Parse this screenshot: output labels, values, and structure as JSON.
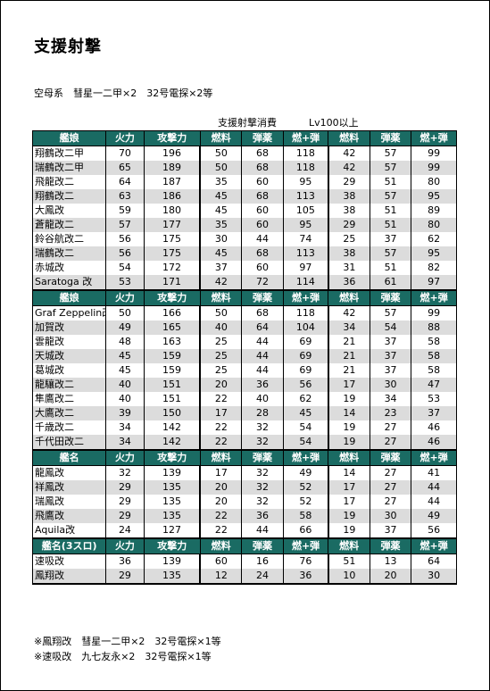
{
  "title": "支援射撃",
  "subtitle": "空母系　彗星一二甲×2　32号電探×2等",
  "labels": {
    "consumption": "支援射撃消費",
    "lv": "Lv100以上"
  },
  "sections": [
    {
      "header": [
        "艦娘",
        "火力",
        "攻撃力",
        "燃料",
        "弾薬",
        "燃+弾",
        "燃料",
        "弾薬",
        "燃+弾"
      ],
      "rows": [
        [
          "翔鶴改二甲",
          "70",
          "196",
          "50",
          "68",
          "118",
          "42",
          "57",
          "99"
        ],
        [
          "瑞鶴改二甲",
          "65",
          "189",
          "50",
          "68",
          "118",
          "42",
          "57",
          "99"
        ],
        [
          "飛龍改二",
          "64",
          "187",
          "35",
          "60",
          "95",
          "29",
          "51",
          "80"
        ],
        [
          "翔鶴改二",
          "63",
          "186",
          "45",
          "68",
          "113",
          "38",
          "57",
          "95"
        ],
        [
          "大鳳改",
          "59",
          "180",
          "45",
          "60",
          "105",
          "38",
          "51",
          "89"
        ],
        [
          "蒼龍改二",
          "57",
          "177",
          "35",
          "60",
          "95",
          "29",
          "51",
          "80"
        ],
        [
          "鈴谷航改二",
          "56",
          "175",
          "30",
          "44",
          "74",
          "25",
          "37",
          "62"
        ],
        [
          "瑞鶴改二",
          "56",
          "175",
          "45",
          "68",
          "113",
          "38",
          "57",
          "95"
        ],
        [
          "赤城改",
          "54",
          "172",
          "37",
          "60",
          "97",
          "31",
          "51",
          "82"
        ],
        [
          "Saratoga 改",
          "53",
          "171",
          "42",
          "72",
          "114",
          "36",
          "61",
          "97"
        ]
      ]
    },
    {
      "header": [
        "艦娘",
        "火力",
        "攻撃力",
        "燃料",
        "弾薬",
        "燃+弾",
        "燃料",
        "弾薬",
        "燃+弾"
      ],
      "rows": [
        [
          "Graf Zeppelin改",
          "50",
          "166",
          "50",
          "68",
          "118",
          "42",
          "57",
          "99"
        ],
        [
          "加賀改",
          "49",
          "165",
          "40",
          "64",
          "104",
          "34",
          "54",
          "88"
        ],
        [
          "雲龍改",
          "48",
          "163",
          "25",
          "44",
          "69",
          "21",
          "37",
          "58"
        ],
        [
          "天城改",
          "45",
          "159",
          "25",
          "44",
          "69",
          "21",
          "37",
          "58"
        ],
        [
          "葛城改",
          "45",
          "159",
          "25",
          "44",
          "69",
          "21",
          "37",
          "58"
        ],
        [
          "龍驤改二",
          "40",
          "151",
          "20",
          "36",
          "56",
          "17",
          "30",
          "47"
        ],
        [
          "隼鷹改二",
          "40",
          "151",
          "22",
          "40",
          "62",
          "19",
          "34",
          "53"
        ],
        [
          "大鷹改二",
          "39",
          "150",
          "17",
          "28",
          "45",
          "14",
          "23",
          "37"
        ],
        [
          "千歳改二",
          "34",
          "142",
          "22",
          "32",
          "54",
          "19",
          "27",
          "46"
        ],
        [
          "千代田改二",
          "34",
          "142",
          "22",
          "32",
          "54",
          "19",
          "27",
          "46"
        ]
      ]
    },
    {
      "header": [
        "艦名",
        "火力",
        "攻撃力",
        "燃料",
        "弾薬",
        "燃+弾",
        "燃料",
        "弾薬",
        "燃+弾"
      ],
      "rows": [
        [
          "龍鳳改",
          "32",
          "139",
          "17",
          "32",
          "49",
          "14",
          "27",
          "41"
        ],
        [
          "祥鳳改",
          "29",
          "135",
          "20",
          "32",
          "52",
          "17",
          "27",
          "44"
        ],
        [
          "瑞鳳改",
          "29",
          "135",
          "20",
          "32",
          "52",
          "17",
          "27",
          "44"
        ],
        [
          "飛鷹改",
          "29",
          "135",
          "22",
          "36",
          "58",
          "19",
          "30",
          "49"
        ],
        [
          "Aquila改",
          "24",
          "127",
          "22",
          "44",
          "66",
          "19",
          "37",
          "56"
        ]
      ]
    },
    {
      "header": [
        "艦名(3スロ)",
        "火力",
        "攻撃力",
        "燃料",
        "弾薬",
        "燃+弾",
        "燃料",
        "弾薬",
        "燃+弾"
      ],
      "rows": [
        [
          "速吸改",
          "36",
          "139",
          "60",
          "16",
          "76",
          "51",
          "13",
          "64"
        ],
        [
          "鳳翔改",
          "29",
          "135",
          "12",
          "24",
          "36",
          "10",
          "20",
          "30"
        ]
      ]
    }
  ],
  "footnotes": [
    "※鳳翔改　彗星一二甲×2　32号電探×1等",
    "※速吸改　九七友永×2　32号電探×1等"
  ]
}
